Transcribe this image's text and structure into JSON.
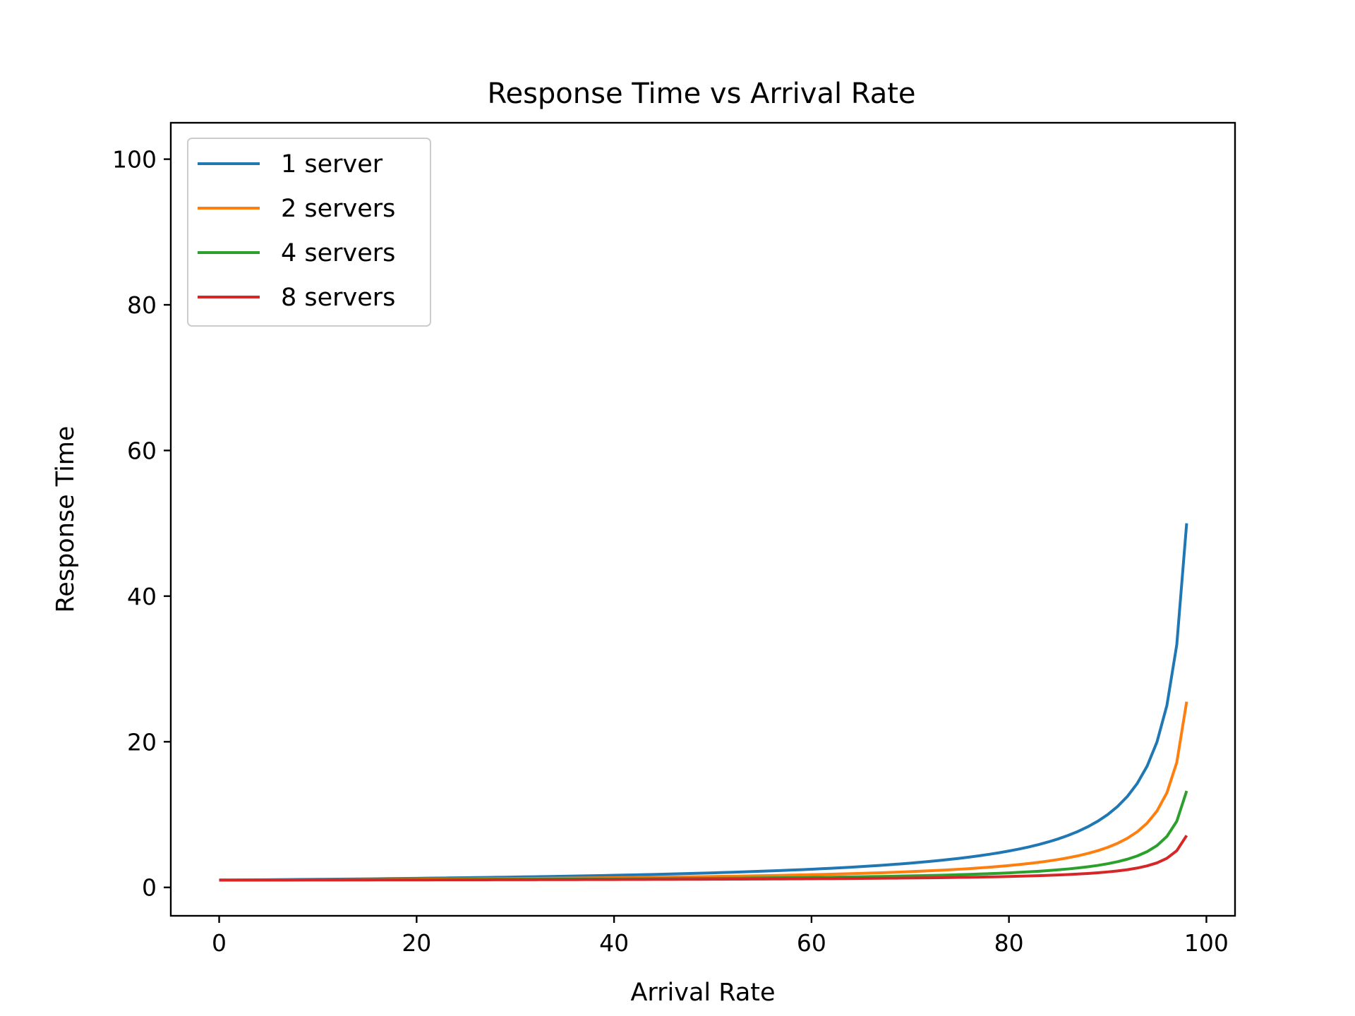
{
  "chart_data": {
    "type": "line",
    "title": "Response Time vs Arrival Rate",
    "xlabel": "Arrival Rate",
    "ylabel": "Response Time",
    "xlim": [
      -4.9,
      102.9
    ],
    "ylim": [
      -3.9,
      105.0
    ],
    "xticks": [
      0,
      20,
      40,
      60,
      80,
      100
    ],
    "yticks": [
      0,
      20,
      40,
      60,
      80,
      100
    ],
    "grid": false,
    "legend_position": "top-left",
    "x": {
      "start": 0,
      "end": 98,
      "step": 1
    },
    "series": [
      {
        "name": "1 server",
        "servers": 1,
        "color": "#1f77b4"
      },
      {
        "name": "2 servers",
        "servers": 2,
        "color": "#ff7f0e"
      },
      {
        "name": "4 servers",
        "servers": 4,
        "color": "#2ca02c"
      },
      {
        "name": "8 servers",
        "servers": 8,
        "color": "#d62728"
      }
    ],
    "formula": "y = 1 / (1 - x/100) / servers + (1 - 1/servers)"
  }
}
